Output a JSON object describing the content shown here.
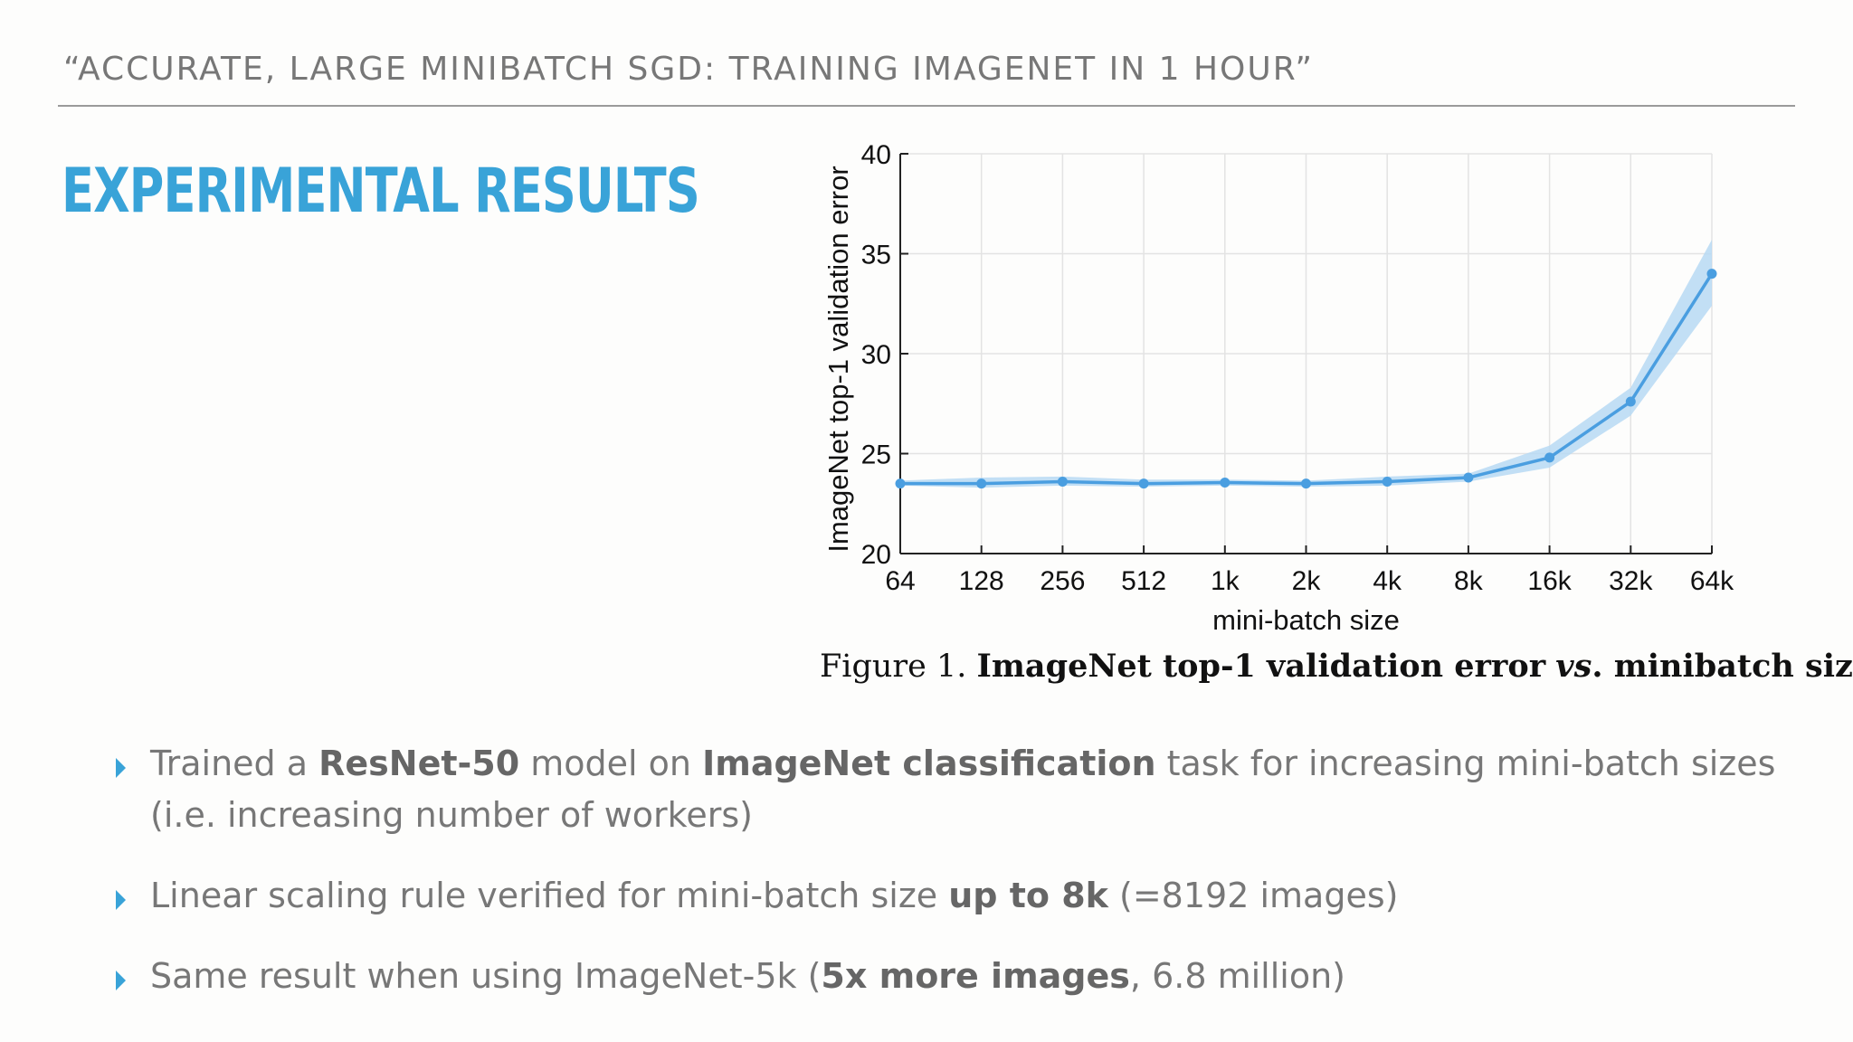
{
  "slide": {
    "header": "“ACCURATE, LARGE MINIBATCH SGD: TRAINING IMAGENET IN 1 HOUR”",
    "title": "EXPERIMENTAL RESULTS",
    "caption": {
      "prefix": "Figure 1.",
      "bold_a": "ImageNet top-1 validation error",
      "italic": "vs",
      "bold_b": ". minibatch size."
    },
    "bullets": [
      {
        "t1": "Trained a ",
        "b1": "ResNet-50",
        "t2": " model on ",
        "b2": "ImageNet classification",
        "t3": " task for increasing mini-batch sizes (i.e. increasing number of workers)"
      },
      {
        "t1": "Linear scaling rule verified for mini-batch size ",
        "b1": "up to 8k",
        "t2": " (=8192 images)"
      },
      {
        "t1": "Same result when using ImageNet-5k (",
        "b1": "5x more images",
        "t2": ", 6.8 million)"
      }
    ]
  },
  "colors": {
    "accent": "#39a3d8",
    "line": "#4a9ee0",
    "band": "#b7d9f3",
    "header_text": "#777777"
  },
  "icons": {
    "bullet": "triangle-right-icon"
  },
  "chart_data": {
    "type": "line",
    "categories": [
      "64",
      "128",
      "256",
      "512",
      "1k",
      "2k",
      "4k",
      "8k",
      "16k",
      "32k",
      "64k"
    ],
    "series": [
      {
        "values": [
          23.5,
          23.5,
          23.6,
          23.5,
          23.55,
          23.5,
          23.6,
          23.8,
          24.8,
          27.6,
          34.0
        ],
        "lower": [
          23.4,
          23.3,
          23.4,
          23.35,
          23.4,
          23.35,
          23.4,
          23.6,
          24.3,
          26.9,
          32.4
        ],
        "upper": [
          23.65,
          23.8,
          23.85,
          23.7,
          23.7,
          23.65,
          23.85,
          24.0,
          25.4,
          28.3,
          35.7
        ]
      }
    ],
    "xlabel": "mini-batch size",
    "ylabel": "ImageNet top-1 validation error",
    "ylim": [
      20,
      40
    ],
    "yticks": [
      20,
      25,
      30,
      35,
      40
    ],
    "grid": true
  }
}
